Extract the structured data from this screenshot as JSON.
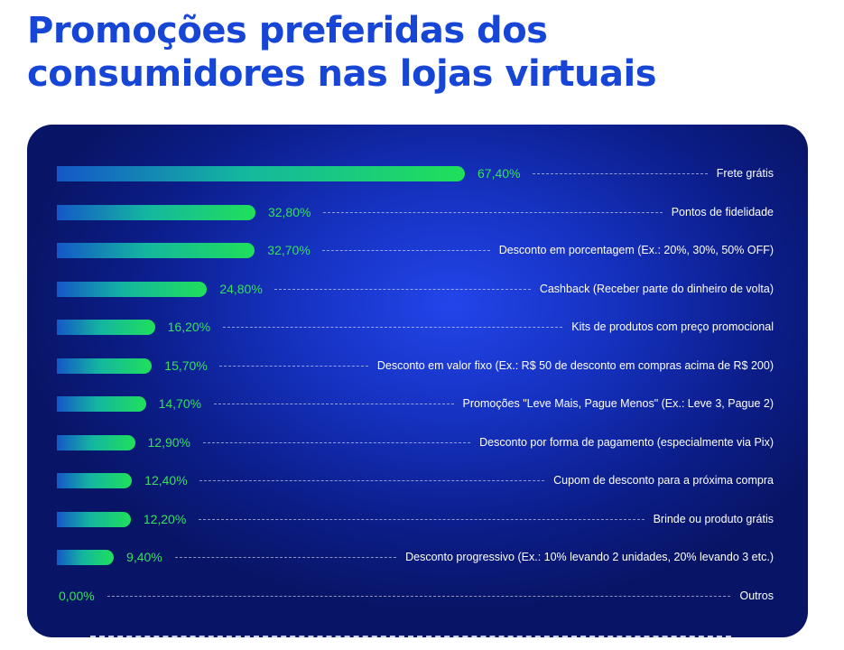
{
  "title_lines": [
    "Promoções preferidas dos",
    "consumidores nas lojas virtuais"
  ],
  "colors": {
    "title": "#1746d6",
    "bar_start": "#1457c8",
    "bar_end": "#1fe05a",
    "percent": "#35e05c",
    "panel": "#0b1c86"
  },
  "chart_data": {
    "type": "bar",
    "orientation": "horizontal",
    "title": "Promoções preferidas dos consumidores nas lojas virtuais",
    "xlabel": "",
    "ylabel": "",
    "xlim": [
      0,
      67.4
    ],
    "grid": false,
    "legend": "none",
    "categories": [
      "Frete grátis",
      "Pontos de fidelidade",
      "Desconto em porcentagem (Ex.: 20%, 30%, 50% OFF)",
      "Cashback (Receber parte do dinheiro de volta)",
      "Kits de produtos com preço promocional",
      "Desconto em valor fixo (Ex.: R$ 50 de desconto em compras acima de R$ 200)",
      "Promoções \"Leve Mais, Pague Menos\" (Ex.: Leve 3, Pague 2)",
      "Desconto por forma de pagamento (especialmente via Pix)",
      "Cupom de desconto para a próxima compra",
      "Brinde ou produto grátis",
      "Desconto progressivo (Ex.: 10% levando 2 unidades, 20% levando 3 etc.)",
      "Outros"
    ],
    "values": [
      67.4,
      32.8,
      32.7,
      24.8,
      16.2,
      15.7,
      14.7,
      12.9,
      12.4,
      12.2,
      9.4,
      0.0
    ],
    "value_labels": [
      "67,40%",
      "32,80%",
      "32,70%",
      "24,80%",
      "16,20%",
      "15,70%",
      "14,70%",
      "12,90%",
      "12,40%",
      "12,20%",
      "9,40%",
      "0,00%"
    ]
  }
}
